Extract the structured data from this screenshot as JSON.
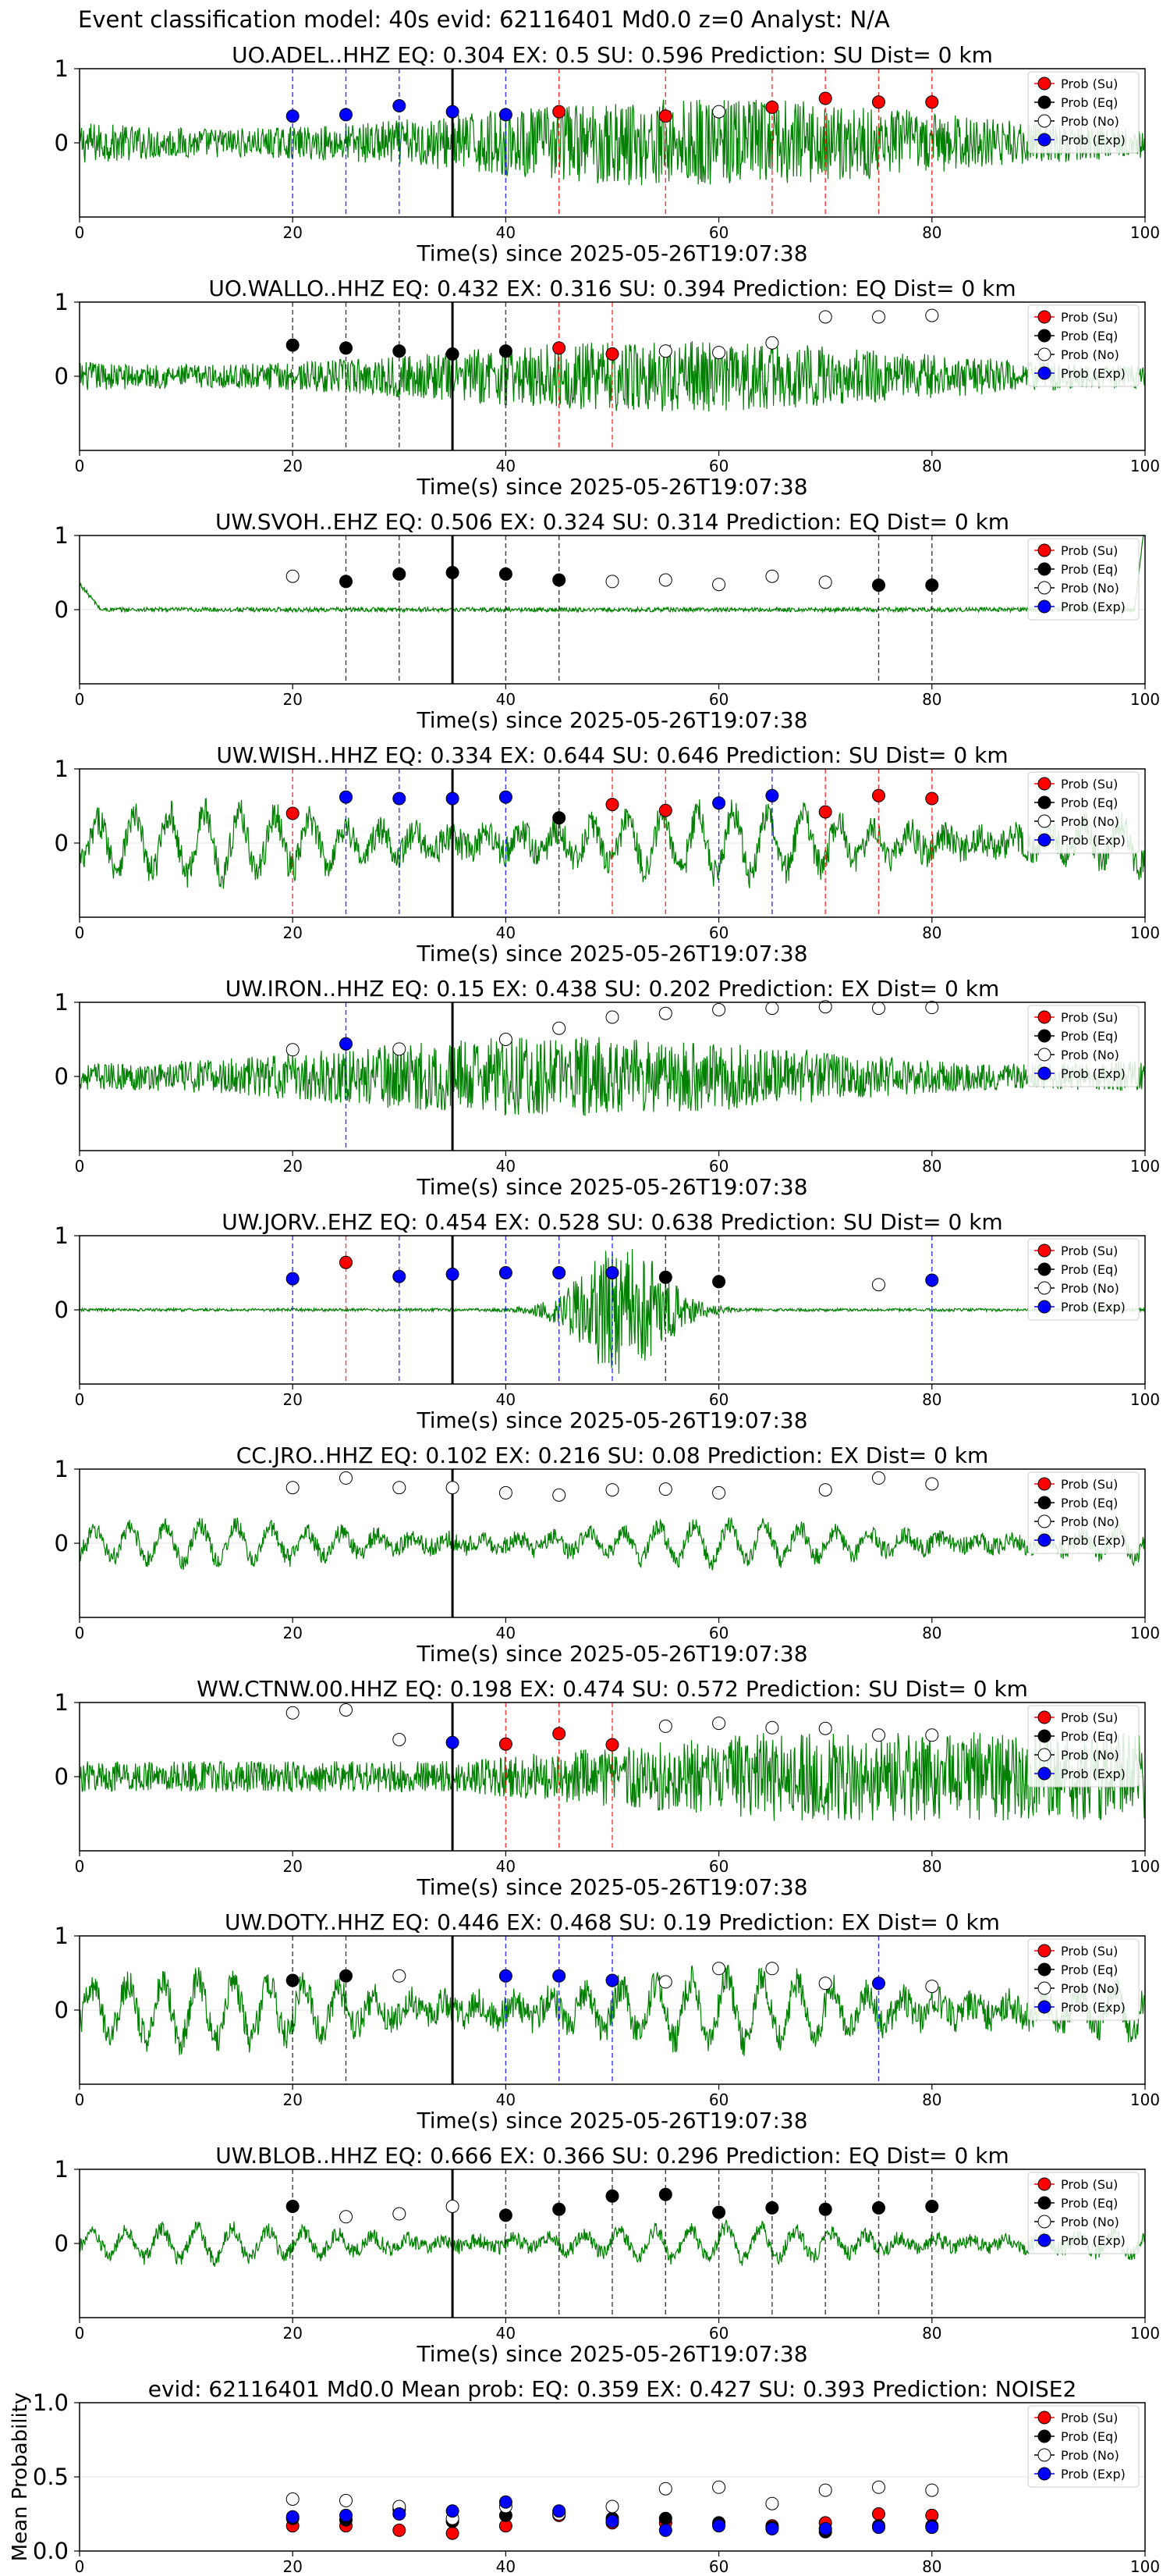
{
  "page_title": "Event classification model: 40s evid: 62116401 Md0.0 z=0 Analyst: N/A",
  "legend_labels": [
    "Prob (Su)",
    "Prob (Eq)",
    "Prob (No)",
    "Prob (Exp)"
  ],
  "colors": {
    "su": "#ff0000",
    "eq": "#000000",
    "no": "#ffffff",
    "exp": "#0000ff",
    "waveform": "#008000",
    "event_line": "#000000"
  },
  "chart_data": [
    {
      "type": "line",
      "title": "UO.ADEL..HHZ   EQ: 0.304  EX: 0.5  SU: 0.596   Prediction: SU    Dist= 0 km",
      "xlabel": "Time(s) since 2025-05-26T19:07:38",
      "ylabel": "",
      "xlim": [
        0,
        100
      ],
      "ylim": [
        -1,
        1
      ],
      "xticks": [
        0,
        20,
        40,
        60,
        80,
        100
      ],
      "yticks": [
        0,
        1
      ],
      "event_time": 35,
      "waveform_style": "noise",
      "waveform_amp": 0.5,
      "points": [
        {
          "x": 20,
          "y": 0.36,
          "cls": "exp"
        },
        {
          "x": 25,
          "y": 0.38,
          "cls": "exp"
        },
        {
          "x": 30,
          "y": 0.5,
          "cls": "exp"
        },
        {
          "x": 35,
          "y": 0.42,
          "cls": "exp"
        },
        {
          "x": 40,
          "y": 0.38,
          "cls": "exp"
        },
        {
          "x": 45,
          "y": 0.42,
          "cls": "su"
        },
        {
          "x": 55,
          "y": 0.36,
          "cls": "su"
        },
        {
          "x": 60,
          "y": 0.42,
          "cls": "no"
        },
        {
          "x": 65,
          "y": 0.48,
          "cls": "su"
        },
        {
          "x": 70,
          "y": 0.6,
          "cls": "su"
        },
        {
          "x": 75,
          "y": 0.55,
          "cls": "su"
        },
        {
          "x": 80,
          "y": 0.55,
          "cls": "su"
        }
      ],
      "legend": "top-right"
    },
    {
      "type": "line",
      "title": "UO.WALLO..HHZ   EQ: 0.432  EX: 0.316  SU: 0.394   Prediction: EQ    Dist= 0 km",
      "xlabel": "Time(s) since 2025-05-26T19:07:38",
      "ylabel": "",
      "xlim": [
        0,
        100
      ],
      "ylim": [
        -1,
        1
      ],
      "xticks": [
        0,
        20,
        40,
        60,
        80,
        100
      ],
      "yticks": [
        0,
        1
      ],
      "event_time": 35,
      "waveform_style": "noise",
      "waveform_amp": 0.4,
      "points": [
        {
          "x": 20,
          "y": 0.42,
          "cls": "eq"
        },
        {
          "x": 25,
          "y": 0.38,
          "cls": "eq"
        },
        {
          "x": 30,
          "y": 0.34,
          "cls": "eq"
        },
        {
          "x": 35,
          "y": 0.3,
          "cls": "eq"
        },
        {
          "x": 40,
          "y": 0.34,
          "cls": "eq"
        },
        {
          "x": 45,
          "y": 0.38,
          "cls": "su"
        },
        {
          "x": 50,
          "y": 0.3,
          "cls": "su"
        },
        {
          "x": 55,
          "y": 0.34,
          "cls": "no"
        },
        {
          "x": 60,
          "y": 0.32,
          "cls": "no"
        },
        {
          "x": 65,
          "y": 0.45,
          "cls": "no"
        },
        {
          "x": 70,
          "y": 0.8,
          "cls": "no"
        },
        {
          "x": 75,
          "y": 0.8,
          "cls": "no"
        },
        {
          "x": 80,
          "y": 0.82,
          "cls": "no"
        }
      ],
      "legend": "top-right"
    },
    {
      "type": "line",
      "title": "UW.SVOH..EHZ   EQ: 0.506  EX: 0.324  SU: 0.314   Prediction: EQ    Dist= 0 km",
      "xlabel": "Time(s) since 2025-05-26T19:07:38",
      "ylabel": "",
      "xlim": [
        0,
        100
      ],
      "ylim": [
        -1,
        1
      ],
      "xticks": [
        0,
        20,
        40,
        60,
        80,
        100
      ],
      "yticks": [
        0,
        1
      ],
      "event_time": 35,
      "waveform_style": "flat",
      "waveform_amp": 0.05,
      "points": [
        {
          "x": 20,
          "y": 0.45,
          "cls": "no"
        },
        {
          "x": 25,
          "y": 0.38,
          "cls": "eq"
        },
        {
          "x": 30,
          "y": 0.48,
          "cls": "eq"
        },
        {
          "x": 35,
          "y": 0.5,
          "cls": "eq"
        },
        {
          "x": 40,
          "y": 0.48,
          "cls": "eq"
        },
        {
          "x": 45,
          "y": 0.4,
          "cls": "eq"
        },
        {
          "x": 50,
          "y": 0.38,
          "cls": "no"
        },
        {
          "x": 55,
          "y": 0.4,
          "cls": "no"
        },
        {
          "x": 60,
          "y": 0.34,
          "cls": "no"
        },
        {
          "x": 65,
          "y": 0.45,
          "cls": "no"
        },
        {
          "x": 70,
          "y": 0.37,
          "cls": "no"
        },
        {
          "x": 75,
          "y": 0.33,
          "cls": "eq"
        },
        {
          "x": 80,
          "y": 0.33,
          "cls": "eq"
        }
      ],
      "legend": "top-right"
    },
    {
      "type": "line",
      "title": "UW.WISH..HHZ   EQ: 0.334  EX: 0.644  SU: 0.646   Prediction: SU    Dist= 0 km",
      "xlabel": "Time(s) since 2025-05-26T19:07:38",
      "ylabel": "",
      "xlim": [
        0,
        100
      ],
      "ylim": [
        -1,
        1
      ],
      "xticks": [
        0,
        20,
        40,
        60,
        80,
        100
      ],
      "yticks": [
        0,
        1
      ],
      "event_time": 35,
      "waveform_style": "wave",
      "waveform_amp": 0.6,
      "points": [
        {
          "x": 20,
          "y": 0.4,
          "cls": "su"
        },
        {
          "x": 25,
          "y": 0.62,
          "cls": "exp"
        },
        {
          "x": 30,
          "y": 0.6,
          "cls": "exp"
        },
        {
          "x": 35,
          "y": 0.6,
          "cls": "exp"
        },
        {
          "x": 40,
          "y": 0.62,
          "cls": "exp"
        },
        {
          "x": 45,
          "y": 0.34,
          "cls": "eq"
        },
        {
          "x": 50,
          "y": 0.52,
          "cls": "su"
        },
        {
          "x": 55,
          "y": 0.44,
          "cls": "su"
        },
        {
          "x": 60,
          "y": 0.54,
          "cls": "exp"
        },
        {
          "x": 65,
          "y": 0.64,
          "cls": "exp"
        },
        {
          "x": 70,
          "y": 0.42,
          "cls": "su"
        },
        {
          "x": 75,
          "y": 0.64,
          "cls": "su"
        },
        {
          "x": 80,
          "y": 0.6,
          "cls": "su"
        }
      ],
      "legend": "top-right"
    },
    {
      "type": "line",
      "title": "UW.IRON..HHZ   EQ: 0.15  EX: 0.438  SU: 0.202   Prediction: EX    Dist= 0 km",
      "xlabel": "Time(s) since 2025-05-26T19:07:38",
      "ylabel": "",
      "xlim": [
        0,
        100
      ],
      "ylim": [
        -1,
        1
      ],
      "xticks": [
        0,
        20,
        40,
        60,
        80,
        100
      ],
      "yticks": [
        0,
        1
      ],
      "event_time": 35,
      "waveform_style": "noise",
      "waveform_amp": 0.45,
      "points": [
        {
          "x": 20,
          "y": 0.36,
          "cls": "no"
        },
        {
          "x": 25,
          "y": 0.44,
          "cls": "exp"
        },
        {
          "x": 30,
          "y": 0.37,
          "cls": "no"
        },
        {
          "x": 40,
          "y": 0.5,
          "cls": "no"
        },
        {
          "x": 45,
          "y": 0.65,
          "cls": "no"
        },
        {
          "x": 50,
          "y": 0.8,
          "cls": "no"
        },
        {
          "x": 55,
          "y": 0.85,
          "cls": "no"
        },
        {
          "x": 60,
          "y": 0.9,
          "cls": "no"
        },
        {
          "x": 65,
          "y": 0.92,
          "cls": "no"
        },
        {
          "x": 70,
          "y": 0.94,
          "cls": "no"
        },
        {
          "x": 75,
          "y": 0.92,
          "cls": "no"
        },
        {
          "x": 80,
          "y": 0.93,
          "cls": "no"
        }
      ],
      "legend": "top-right"
    },
    {
      "type": "line",
      "title": "UW.JORV..EHZ   EQ: 0.454  EX: 0.528  SU: 0.638   Prediction: SU    Dist= 0 km",
      "xlabel": "Time(s) since 2025-05-26T19:07:38",
      "ylabel": "",
      "xlim": [
        0,
        100
      ],
      "ylim": [
        -1,
        1
      ],
      "xticks": [
        0,
        20,
        40,
        60,
        80,
        100
      ],
      "yticks": [
        0,
        1
      ],
      "event_time": 35,
      "waveform_style": "burst",
      "waveform_amp": 0.9,
      "points": [
        {
          "x": 20,
          "y": 0.42,
          "cls": "exp"
        },
        {
          "x": 25,
          "y": 0.64,
          "cls": "su"
        },
        {
          "x": 30,
          "y": 0.45,
          "cls": "exp"
        },
        {
          "x": 35,
          "y": 0.48,
          "cls": "exp"
        },
        {
          "x": 40,
          "y": 0.5,
          "cls": "exp"
        },
        {
          "x": 45,
          "y": 0.5,
          "cls": "exp"
        },
        {
          "x": 50,
          "y": 0.5,
          "cls": "exp"
        },
        {
          "x": 55,
          "y": 0.44,
          "cls": "eq"
        },
        {
          "x": 60,
          "y": 0.38,
          "cls": "eq"
        },
        {
          "x": 75,
          "y": 0.34,
          "cls": "no"
        },
        {
          "x": 80,
          "y": 0.4,
          "cls": "exp"
        }
      ],
      "legend": "top-right"
    },
    {
      "type": "line",
      "title": "CC.JRO..HHZ   EQ: 0.102  EX: 0.216  SU: 0.08   Prediction: EX    Dist= 0 km",
      "xlabel": "Time(s) since 2025-05-26T19:07:38",
      "ylabel": "",
      "xlim": [
        0,
        100
      ],
      "ylim": [
        -1,
        1
      ],
      "xticks": [
        0,
        20,
        40,
        60,
        80,
        100
      ],
      "yticks": [
        0,
        1
      ],
      "event_time": 35,
      "waveform_style": "wave",
      "waveform_amp": 0.35,
      "points": [
        {
          "x": 20,
          "y": 0.75,
          "cls": "no"
        },
        {
          "x": 25,
          "y": 0.88,
          "cls": "no"
        },
        {
          "x": 30,
          "y": 0.75,
          "cls": "no"
        },
        {
          "x": 35,
          "y": 0.75,
          "cls": "no"
        },
        {
          "x": 40,
          "y": 0.68,
          "cls": "no"
        },
        {
          "x": 45,
          "y": 0.65,
          "cls": "no"
        },
        {
          "x": 50,
          "y": 0.72,
          "cls": "no"
        },
        {
          "x": 55,
          "y": 0.73,
          "cls": "no"
        },
        {
          "x": 60,
          "y": 0.68,
          "cls": "no"
        },
        {
          "x": 70,
          "y": 0.72,
          "cls": "no"
        },
        {
          "x": 75,
          "y": 0.88,
          "cls": "no"
        },
        {
          "x": 80,
          "y": 0.8,
          "cls": "no"
        }
      ],
      "legend": "top-right"
    },
    {
      "type": "line",
      "title": "WW.CTNW.00.HHZ   EQ: 0.198  EX: 0.474  SU: 0.572   Prediction: SU    Dist= 0 km",
      "xlabel": "Time(s) since 2025-05-26T19:07:38",
      "ylabel": "",
      "xlim": [
        0,
        100
      ],
      "ylim": [
        -1,
        1
      ],
      "xticks": [
        0,
        20,
        40,
        60,
        80,
        100
      ],
      "yticks": [
        0,
        1
      ],
      "event_time": 35,
      "waveform_style": "growing",
      "waveform_amp": 0.6,
      "points": [
        {
          "x": 20,
          "y": 0.86,
          "cls": "no"
        },
        {
          "x": 25,
          "y": 0.9,
          "cls": "no"
        },
        {
          "x": 30,
          "y": 0.5,
          "cls": "no"
        },
        {
          "x": 35,
          "y": 0.46,
          "cls": "exp"
        },
        {
          "x": 40,
          "y": 0.44,
          "cls": "su"
        },
        {
          "x": 45,
          "y": 0.58,
          "cls": "su"
        },
        {
          "x": 50,
          "y": 0.43,
          "cls": "su"
        },
        {
          "x": 55,
          "y": 0.68,
          "cls": "no"
        },
        {
          "x": 60,
          "y": 0.72,
          "cls": "no"
        },
        {
          "x": 65,
          "y": 0.66,
          "cls": "no"
        },
        {
          "x": 70,
          "y": 0.65,
          "cls": "no"
        },
        {
          "x": 75,
          "y": 0.56,
          "cls": "no"
        },
        {
          "x": 80,
          "y": 0.56,
          "cls": "no"
        }
      ],
      "legend": "top-right"
    },
    {
      "type": "line",
      "title": "UW.DOTY..HHZ   EQ: 0.446  EX: 0.468  SU: 0.19   Prediction: EX    Dist= 0 km",
      "xlabel": "Time(s) since 2025-05-26T19:07:38",
      "ylabel": "",
      "xlim": [
        0,
        100
      ],
      "ylim": [
        -1,
        1
      ],
      "xticks": [
        0,
        20,
        40,
        60,
        80,
        100
      ],
      "yticks": [
        0,
        1
      ],
      "event_time": 35,
      "waveform_style": "wave",
      "waveform_amp": 0.6,
      "points": [
        {
          "x": 20,
          "y": 0.4,
          "cls": "eq"
        },
        {
          "x": 25,
          "y": 0.46,
          "cls": "eq"
        },
        {
          "x": 30,
          "y": 0.46,
          "cls": "no"
        },
        {
          "x": 40,
          "y": 0.46,
          "cls": "exp"
        },
        {
          "x": 45,
          "y": 0.46,
          "cls": "exp"
        },
        {
          "x": 50,
          "y": 0.4,
          "cls": "exp"
        },
        {
          "x": 55,
          "y": 0.38,
          "cls": "no"
        },
        {
          "x": 60,
          "y": 0.56,
          "cls": "no"
        },
        {
          "x": 65,
          "y": 0.56,
          "cls": "no"
        },
        {
          "x": 70,
          "y": 0.36,
          "cls": "no"
        },
        {
          "x": 75,
          "y": 0.36,
          "cls": "exp"
        },
        {
          "x": 80,
          "y": 0.32,
          "cls": "no"
        }
      ],
      "legend": "top-right"
    },
    {
      "type": "line",
      "title": "UW.BLOB..HHZ   EQ: 0.666  EX: 0.366  SU: 0.296   Prediction: EQ    Dist= 0 km",
      "xlabel": "Time(s) since 2025-05-26T19:07:38",
      "ylabel": "",
      "xlim": [
        0,
        100
      ],
      "ylim": [
        -1,
        1
      ],
      "xticks": [
        0,
        20,
        40,
        60,
        80,
        100
      ],
      "yticks": [
        0,
        1
      ],
      "event_time": 35,
      "waveform_style": "wave",
      "waveform_amp": 0.3,
      "points": [
        {
          "x": 20,
          "y": 0.5,
          "cls": "eq"
        },
        {
          "x": 25,
          "y": 0.36,
          "cls": "no"
        },
        {
          "x": 30,
          "y": 0.4,
          "cls": "no"
        },
        {
          "x": 35,
          "y": 0.5,
          "cls": "no"
        },
        {
          "x": 40,
          "y": 0.38,
          "cls": "eq"
        },
        {
          "x": 45,
          "y": 0.46,
          "cls": "eq"
        },
        {
          "x": 50,
          "y": 0.64,
          "cls": "eq"
        },
        {
          "x": 55,
          "y": 0.66,
          "cls": "eq"
        },
        {
          "x": 60,
          "y": 0.42,
          "cls": "eq"
        },
        {
          "x": 65,
          "y": 0.48,
          "cls": "eq"
        },
        {
          "x": 70,
          "y": 0.46,
          "cls": "eq"
        },
        {
          "x": 75,
          "y": 0.48,
          "cls": "eq"
        },
        {
          "x": 80,
          "y": 0.5,
          "cls": "eq"
        }
      ],
      "legend": "top-right"
    },
    {
      "type": "scatter",
      "title": "evid: 62116401  Md0.0   Mean prob:   EQ: 0.359  EX: 0.427  SU: 0.393   Prediction: NOISE2",
      "xlabel": "",
      "ylabel": "Mean Probability",
      "xlim": [
        0,
        100
      ],
      "ylim": [
        0,
        1
      ],
      "xticks": [
        0,
        20,
        40,
        60,
        80,
        100
      ],
      "yticks": [
        0.0,
        0.5,
        1.0
      ],
      "ytick_labels": [
        "0.0",
        "0.5",
        "1.0"
      ],
      "series": [
        {
          "name": "Prob (Su)",
          "cls": "su",
          "x": [
            20,
            25,
            30,
            35,
            40,
            45,
            50,
            55,
            60,
            65,
            70,
            75,
            80
          ],
          "values": [
            0.17,
            0.17,
            0.14,
            0.12,
            0.17,
            0.24,
            0.19,
            0.19,
            0.18,
            0.17,
            0.19,
            0.25,
            0.24
          ]
        },
        {
          "name": "Prob (Eq)",
          "cls": "eq",
          "x": [
            20,
            25,
            30,
            35,
            40,
            45,
            50,
            55,
            60,
            65,
            70,
            75,
            80
          ],
          "values": [
            0.22,
            0.21,
            0.28,
            0.2,
            0.24,
            0.26,
            0.22,
            0.22,
            0.19,
            0.16,
            0.13,
            0.17,
            0.17
          ]
        },
        {
          "name": "Prob (No)",
          "cls": "no",
          "x": [
            20,
            25,
            30,
            35,
            40,
            45,
            50,
            55,
            60,
            65,
            70,
            75,
            80
          ],
          "values": [
            0.35,
            0.34,
            0.3,
            0.22,
            0.3,
            0.25,
            0.3,
            0.42,
            0.43,
            0.32,
            0.41,
            0.43,
            0.41
          ]
        },
        {
          "name": "Prob (Exp)",
          "cls": "exp",
          "x": [
            20,
            25,
            30,
            35,
            40,
            45,
            50,
            55,
            60,
            65,
            70,
            75,
            80
          ],
          "values": [
            0.23,
            0.24,
            0.25,
            0.27,
            0.33,
            0.27,
            0.2,
            0.14,
            0.17,
            0.15,
            0.15,
            0.16,
            0.16
          ]
        }
      ],
      "legend": "top-right"
    }
  ]
}
